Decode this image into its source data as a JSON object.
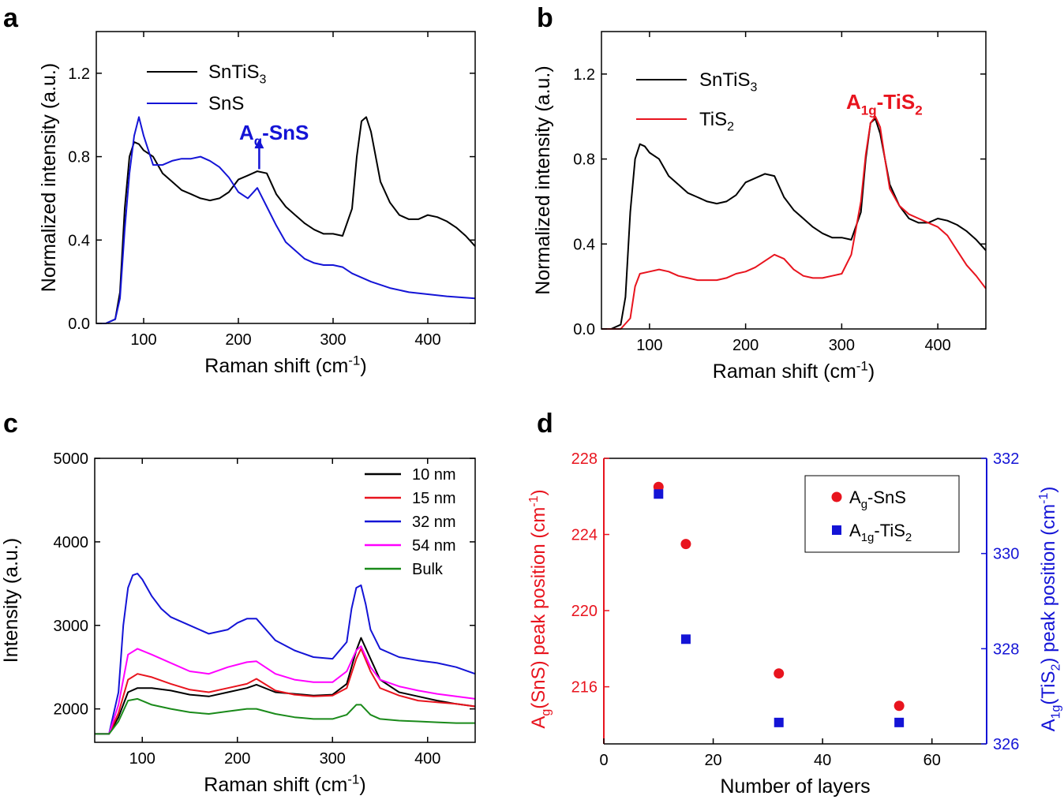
{
  "figure": {
    "panel_labels": [
      "a",
      "b",
      "c",
      "d"
    ]
  },
  "chart_data": [
    {
      "panel": "a",
      "type": "line",
      "xlabel_main": "Raman shift (cm",
      "xlabel_sup": "-1",
      "xlabel_end": ")",
      "ylabel": "Normalized intensity (a.u.)",
      "xlim": [
        50,
        450
      ],
      "ylim": [
        0.0,
        1.4
      ],
      "xticks": [
        100,
        200,
        300,
        400
      ],
      "yticks": [
        "0.0",
        "0.4",
        "0.8",
        "1.2"
      ],
      "annotation": {
        "main": "A",
        "sub": "g",
        "rest": "-SnS",
        "color": "#1414d6",
        "x": 222,
        "y_from": 0.74,
        "y_to": 0.87
      },
      "series": [
        {
          "name_main": "SnTiS",
          "name_sub": "3",
          "color": "#000000",
          "x": [
            50,
            60,
            70,
            75,
            80,
            85,
            90,
            95,
            100,
            110,
            120,
            130,
            140,
            150,
            160,
            170,
            180,
            190,
            200,
            210,
            220,
            230,
            240,
            250,
            260,
            270,
            280,
            290,
            300,
            310,
            320,
            325,
            330,
            335,
            340,
            345,
            350,
            360,
            370,
            380,
            390,
            400,
            410,
            420,
            430,
            440,
            450
          ],
          "y": [
            0.0,
            0.0,
            0.02,
            0.15,
            0.55,
            0.8,
            0.87,
            0.86,
            0.83,
            0.8,
            0.72,
            0.68,
            0.64,
            0.62,
            0.6,
            0.59,
            0.6,
            0.63,
            0.69,
            0.71,
            0.73,
            0.72,
            0.62,
            0.56,
            0.52,
            0.48,
            0.45,
            0.43,
            0.43,
            0.42,
            0.55,
            0.8,
            0.97,
            0.99,
            0.92,
            0.8,
            0.68,
            0.58,
            0.52,
            0.5,
            0.5,
            0.52,
            0.51,
            0.49,
            0.46,
            0.42,
            0.37
          ]
        },
        {
          "name_main": "SnS",
          "name_sub": "",
          "color": "#1414d6",
          "x": [
            50,
            60,
            70,
            75,
            80,
            85,
            90,
            95,
            100,
            110,
            120,
            130,
            140,
            150,
            160,
            170,
            180,
            190,
            200,
            210,
            220,
            230,
            240,
            250,
            260,
            270,
            280,
            290,
            300,
            310,
            320,
            340,
            360,
            380,
            400,
            420,
            450
          ],
          "y": [
            0.0,
            0.0,
            0.02,
            0.12,
            0.45,
            0.72,
            0.9,
            0.99,
            0.9,
            0.76,
            0.76,
            0.78,
            0.79,
            0.79,
            0.8,
            0.78,
            0.75,
            0.7,
            0.63,
            0.6,
            0.65,
            0.56,
            0.47,
            0.39,
            0.35,
            0.31,
            0.29,
            0.28,
            0.28,
            0.27,
            0.24,
            0.2,
            0.17,
            0.15,
            0.14,
            0.13,
            0.12
          ]
        }
      ]
    },
    {
      "panel": "b",
      "type": "line",
      "xlabel_main": "Raman shift (cm",
      "xlabel_sup": "-1",
      "xlabel_end": ")",
      "ylabel": "Normalized intensity (a.u.)",
      "xlim": [
        50,
        450
      ],
      "ylim": [
        0.0,
        1.4
      ],
      "xticks": [
        100,
        200,
        300,
        400
      ],
      "yticks": [
        "0.0",
        "0.4",
        "0.8",
        "1.2"
      ],
      "annotation": {
        "main": "A",
        "sub": "1g",
        "rest": "-TiS",
        "sub2": "2",
        "color": "#e8141e"
      },
      "series": [
        {
          "name_main": "SnTiS",
          "name_sub": "3",
          "color": "#000000",
          "x": [
            50,
            60,
            70,
            75,
            80,
            85,
            90,
            95,
            100,
            110,
            120,
            130,
            140,
            150,
            160,
            170,
            180,
            190,
            200,
            210,
            220,
            230,
            240,
            250,
            260,
            270,
            280,
            290,
            300,
            310,
            320,
            325,
            330,
            335,
            340,
            345,
            350,
            360,
            370,
            380,
            390,
            400,
            410,
            420,
            430,
            440,
            450
          ],
          "y": [
            0.0,
            0.0,
            0.02,
            0.15,
            0.55,
            0.8,
            0.87,
            0.86,
            0.83,
            0.8,
            0.72,
            0.68,
            0.64,
            0.62,
            0.6,
            0.59,
            0.6,
            0.63,
            0.69,
            0.71,
            0.73,
            0.72,
            0.62,
            0.56,
            0.52,
            0.48,
            0.45,
            0.43,
            0.43,
            0.42,
            0.55,
            0.8,
            0.97,
            0.99,
            0.92,
            0.8,
            0.68,
            0.58,
            0.52,
            0.5,
            0.5,
            0.52,
            0.51,
            0.49,
            0.46,
            0.42,
            0.37
          ]
        },
        {
          "name_main": "TiS",
          "name_sub": "2",
          "color": "#e8141e",
          "x": [
            50,
            60,
            70,
            80,
            85,
            90,
            100,
            110,
            120,
            130,
            140,
            150,
            160,
            170,
            180,
            190,
            200,
            210,
            220,
            230,
            240,
            250,
            260,
            270,
            280,
            290,
            300,
            310,
            320,
            325,
            330,
            335,
            340,
            345,
            350,
            360,
            370,
            380,
            390,
            400,
            410,
            420,
            430,
            440,
            450
          ],
          "y": [
            0.0,
            0.0,
            0.0,
            0.05,
            0.2,
            0.26,
            0.27,
            0.28,
            0.27,
            0.25,
            0.24,
            0.23,
            0.23,
            0.23,
            0.24,
            0.26,
            0.27,
            0.29,
            0.32,
            0.35,
            0.33,
            0.28,
            0.25,
            0.24,
            0.24,
            0.25,
            0.26,
            0.35,
            0.6,
            0.82,
            0.97,
            1.0,
            0.95,
            0.8,
            0.66,
            0.58,
            0.54,
            0.52,
            0.5,
            0.48,
            0.44,
            0.37,
            0.3,
            0.25,
            0.19
          ]
        }
      ]
    },
    {
      "panel": "c",
      "type": "line",
      "xlabel_main": "Raman shift (cm",
      "xlabel_sup": "-1",
      "xlabel_end": ")",
      "ylabel": "Intensity (a.u.)",
      "xlim": [
        50,
        450
      ],
      "ylim": [
        1600,
        5000
      ],
      "xticks": [
        100,
        200,
        300,
        400
      ],
      "yticks": [
        "2000",
        "3000",
        "4000",
        "5000"
      ],
      "series": [
        {
          "name_main": "10 nm",
          "name_sub": "",
          "color": "#000000",
          "x": [
            50,
            65,
            75,
            85,
            95,
            110,
            130,
            150,
            170,
            190,
            210,
            220,
            240,
            260,
            280,
            300,
            315,
            325,
            330,
            340,
            350,
            370,
            390,
            410,
            430,
            450
          ],
          "y": [
            1700,
            1700,
            1900,
            2200,
            2250,
            2250,
            2220,
            2170,
            2150,
            2200,
            2250,
            2290,
            2200,
            2180,
            2160,
            2170,
            2300,
            2700,
            2850,
            2600,
            2350,
            2200,
            2150,
            2100,
            2060,
            2030
          ]
        },
        {
          "name_main": "15 nm",
          "name_sub": "",
          "color": "#e8141e",
          "x": [
            50,
            65,
            75,
            85,
            95,
            110,
            130,
            150,
            170,
            190,
            210,
            220,
            240,
            260,
            280,
            300,
            315,
            325,
            330,
            340,
            350,
            370,
            390,
            410,
            430,
            450
          ],
          "y": [
            1700,
            1700,
            1950,
            2350,
            2420,
            2380,
            2300,
            2230,
            2200,
            2250,
            2300,
            2360,
            2220,
            2170,
            2150,
            2160,
            2250,
            2600,
            2720,
            2450,
            2250,
            2160,
            2100,
            2080,
            2060,
            2030
          ]
        },
        {
          "name_main": "32 nm",
          "name_sub": "",
          "color": "#1414d6",
          "x": [
            50,
            65,
            75,
            80,
            85,
            90,
            95,
            100,
            110,
            120,
            130,
            150,
            170,
            190,
            200,
            210,
            220,
            230,
            240,
            260,
            280,
            300,
            315,
            320,
            325,
            330,
            335,
            340,
            350,
            370,
            390,
            410,
            430,
            450
          ],
          "y": [
            1700,
            1700,
            2200,
            3000,
            3450,
            3600,
            3620,
            3550,
            3350,
            3200,
            3100,
            3000,
            2900,
            2950,
            3030,
            3080,
            3080,
            2950,
            2820,
            2700,
            2620,
            2600,
            2800,
            3200,
            3450,
            3480,
            3250,
            2950,
            2720,
            2620,
            2580,
            2550,
            2500,
            2420
          ]
        },
        {
          "name_main": "54 nm",
          "name_sub": "",
          "color": "#ff00ff",
          "x": [
            50,
            65,
            75,
            85,
            95,
            110,
            130,
            150,
            170,
            190,
            210,
            220,
            240,
            260,
            280,
            300,
            315,
            325,
            330,
            340,
            350,
            370,
            390,
            410,
            430,
            450
          ],
          "y": [
            1700,
            1700,
            2050,
            2650,
            2720,
            2650,
            2550,
            2450,
            2420,
            2500,
            2560,
            2570,
            2420,
            2350,
            2320,
            2320,
            2450,
            2700,
            2750,
            2500,
            2350,
            2270,
            2220,
            2180,
            2150,
            2120
          ]
        },
        {
          "name_main": "Bulk",
          "name_sub": "",
          "color": "#1a8a1a",
          "x": [
            50,
            65,
            75,
            85,
            95,
            110,
            130,
            150,
            170,
            190,
            210,
            220,
            240,
            260,
            280,
            300,
            315,
            325,
            330,
            340,
            350,
            370,
            390,
            410,
            430,
            450
          ],
          "y": [
            1700,
            1700,
            1850,
            2100,
            2120,
            2050,
            2000,
            1960,
            1940,
            1970,
            2000,
            2000,
            1940,
            1900,
            1880,
            1880,
            1930,
            2050,
            2050,
            1930,
            1880,
            1860,
            1850,
            1840,
            1830,
            1830
          ]
        }
      ]
    },
    {
      "panel": "d",
      "type": "scatter",
      "xlabel": "Number of layers",
      "ylabel_left": {
        "main": "A",
        "sub": "g",
        "rest": "(SnS) peak position (cm",
        "sup": "-1",
        "end": ")"
      },
      "ylabel_right": {
        "main": "A",
        "sub": "1g",
        "rest": "(TiS",
        "sub2": "2",
        "rest2": ") peak position (cm",
        "sup": "-1",
        "end": ")"
      },
      "xlim": [
        0,
        70
      ],
      "ylim_left": [
        213,
        228
      ],
      "ylim_right": [
        326,
        332
      ],
      "xticks": [
        0,
        20,
        40,
        60
      ],
      "yticks_left": [
        216,
        220,
        224,
        228
      ],
      "yticks_right": [
        326,
        328,
        330,
        332
      ],
      "left_color": "#e8141e",
      "right_color": "#1414d6",
      "series": [
        {
          "name_main": "A",
          "name_sub": "g",
          "name_rest": "-SnS",
          "name_sub2": "",
          "marker": "circle",
          "color": "#e8141e",
          "axis": "left",
          "x": [
            10,
            15,
            32,
            54
          ],
          "y": [
            226.5,
            223.5,
            216.7,
            215.0
          ]
        },
        {
          "name_main": "A",
          "name_sub": "1g",
          "name_rest": "-TiS",
          "name_sub2": "2",
          "marker": "square",
          "color": "#1414d6",
          "axis": "right",
          "x": [
            10,
            15,
            32,
            54
          ],
          "y": [
            331.25,
            328.2,
            326.45,
            326.45
          ]
        }
      ]
    }
  ]
}
